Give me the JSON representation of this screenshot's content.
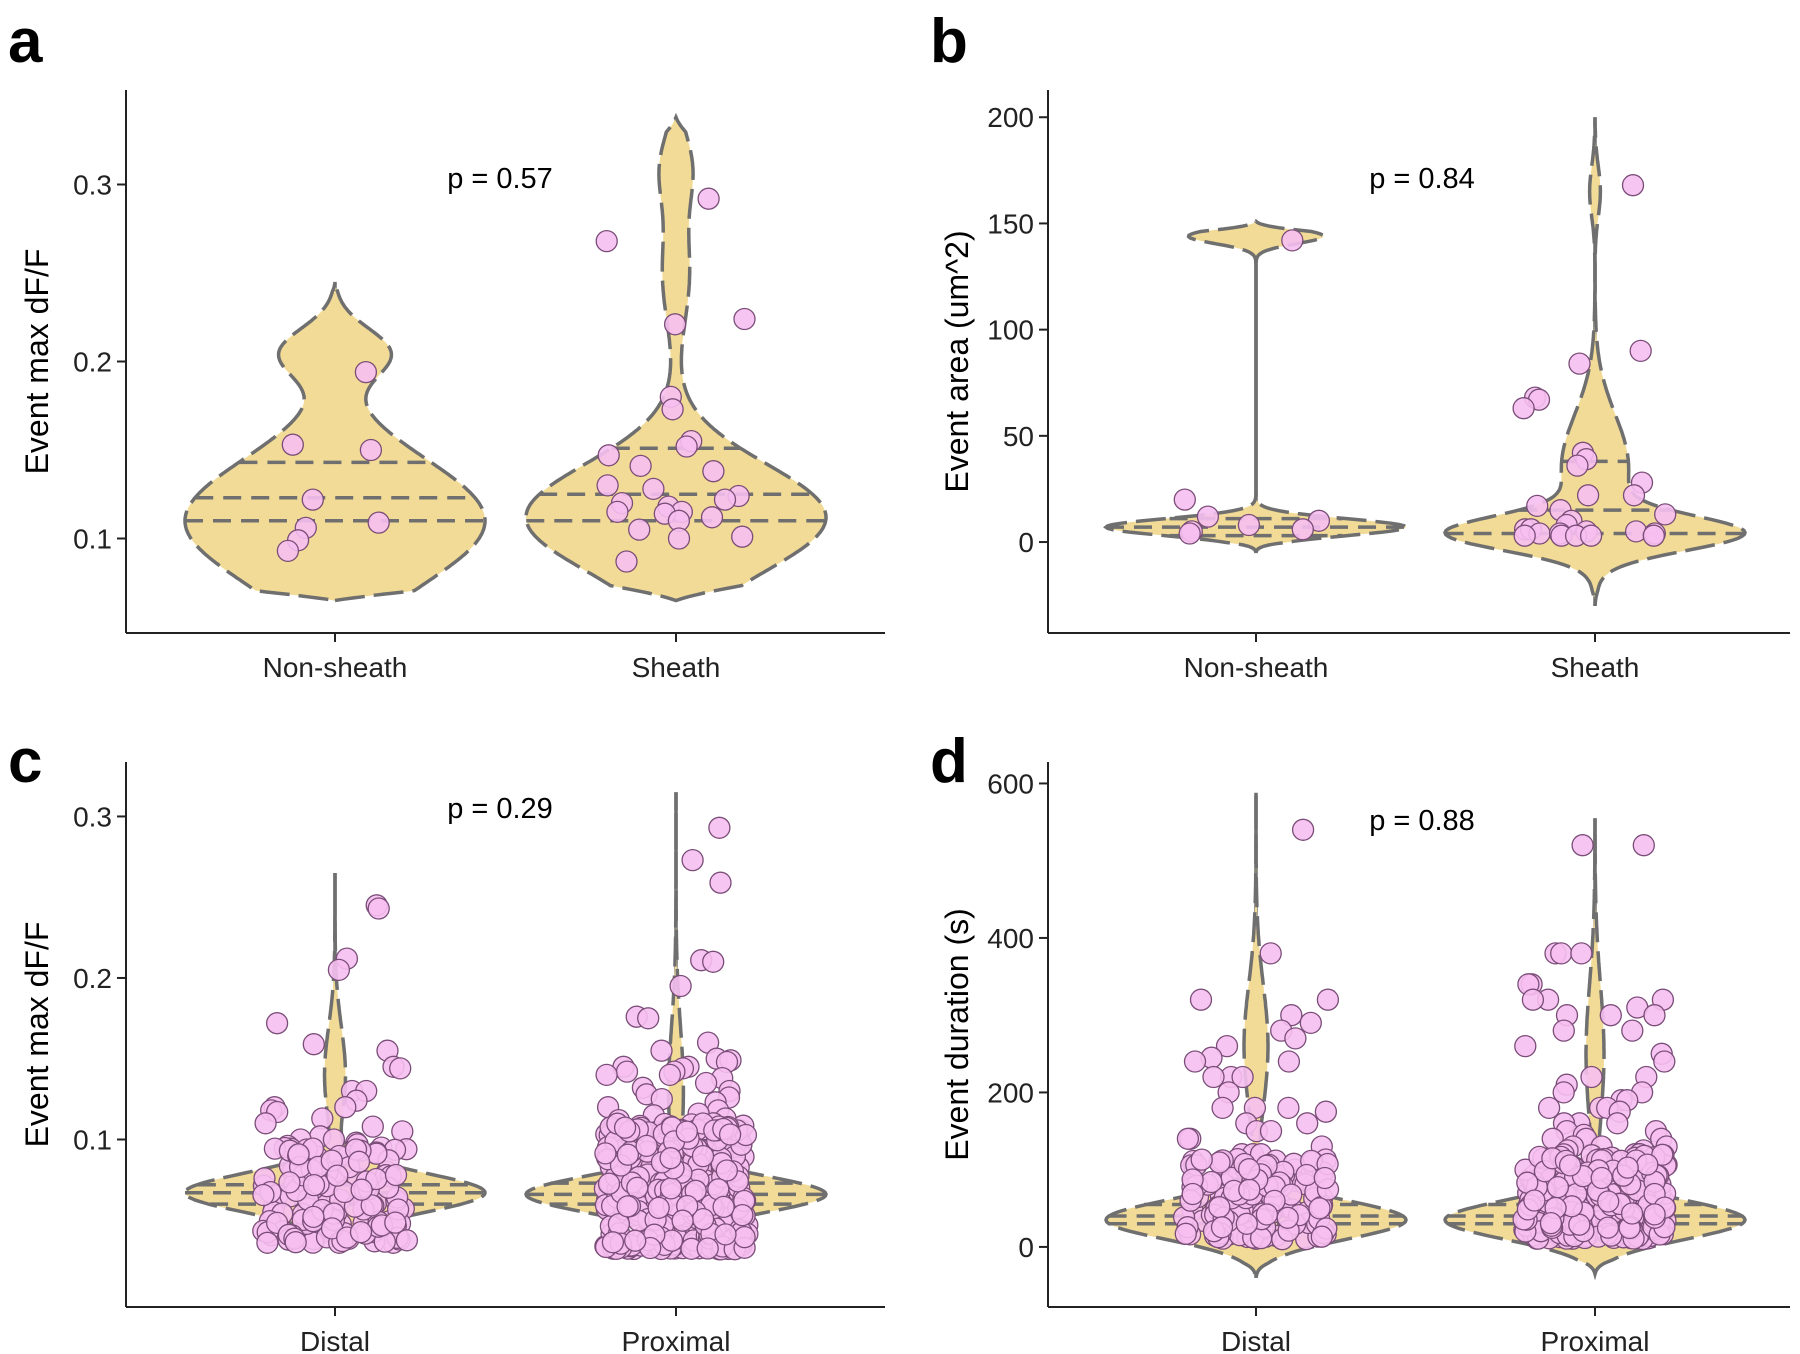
{
  "chart_data": [
    {
      "panel": "a",
      "type": "violin",
      "ylabel": "Event max dF/F",
      "ylim": [
        0.05,
        0.35
      ],
      "yticks": [
        0.1,
        0.2,
        0.3
      ],
      "ytick_labels": [
        "0.1",
        "0.2",
        "0.3"
      ],
      "categories": [
        "Non-sheath",
        "Sheath"
      ],
      "annotation": "p = 0.57",
      "violins": [
        {
          "range": [
            0.065,
            0.245
          ],
          "quantiles": [
            0.11,
            0.123,
            0.143
          ],
          "bulges": [
            [
              0.11,
              1.0,
              0.035
            ],
            [
              0.205,
              0.35,
              0.014
            ]
          ]
        },
        {
          "range": [
            0.065,
            0.338
          ],
          "quantiles": [
            0.11,
            0.125,
            0.151
          ],
          "bulges": [
            [
              0.112,
              1.0,
              0.03
            ],
            [
              0.25,
              0.09,
              0.03
            ],
            [
              0.31,
              0.1,
              0.02
            ]
          ]
        }
      ],
      "points": [
        [
          [
            0.194,
            0.153,
            0.15,
            0.122,
            0.109,
            0.106,
            0.099,
            0.093
          ]
        ],
        [
          [
            0.292,
            0.268,
            0.224,
            0.221,
            0.18,
            0.173,
            0.155,
            0.152,
            0.147,
            0.141,
            0.138,
            0.13,
            0.128,
            0.124,
            0.122,
            0.12,
            0.118,
            0.115,
            0.115,
            0.114,
            0.112,
            0.11,
            0.105,
            0.101,
            0.1,
            0.087
          ]
        ]
      ]
    },
    {
      "panel": "b",
      "type": "violin",
      "ylabel": "Event area (um^2)",
      "ylim": [
        -40,
        210
      ],
      "yticks": [
        0,
        50,
        100,
        150,
        200
      ],
      "ytick_labels": [
        "0",
        "50",
        "100",
        "150",
        "200"
      ],
      "categories": [
        "Non-sheath",
        "Sheath"
      ],
      "annotation": "p = 0.84",
      "violins": [
        {
          "range": [
            -5,
            151
          ],
          "quantiles": [
            3,
            7,
            11
          ],
          "bulges": [
            [
              7,
              1.0,
              4
            ],
            [
              144,
              0.45,
              3.5
            ]
          ]
        },
        {
          "range": [
            -30,
            200
          ],
          "quantiles": [
            4,
            15,
            38
          ],
          "bulges": [
            [
              4,
              1.0,
              8
            ],
            [
              35,
              0.25,
              25
            ],
            [
              165,
              0.04,
              12
            ]
          ]
        }
      ],
      "points": [
        [
          [
            142,
            20,
            12,
            10,
            8,
            6,
            5,
            4
          ]
        ],
        [
          [
            168,
            90,
            84,
            68,
            67,
            63,
            42,
            39,
            36,
            28,
            22,
            22,
            17,
            15,
            13,
            10,
            8,
            6,
            6,
            5,
            5,
            4,
            4,
            4,
            3,
            3,
            3,
            3,
            3
          ]
        ]
      ]
    },
    {
      "panel": "c",
      "type": "violin",
      "ylabel": "Event max dF/F",
      "ylim": [
        0.0,
        0.33
      ],
      "yticks": [
        0.1,
        0.2,
        0.3
      ],
      "ytick_labels": [
        "0.1",
        "0.2",
        "0.3"
      ],
      "categories": [
        "Distal",
        "Proximal"
      ],
      "annotation": "p = 0.29",
      "violins": [
        {
          "range": [
            0.035,
            0.265
          ],
          "quantiles": [
            0.06,
            0.067,
            0.072
          ],
          "bulges": [
            [
              0.067,
              1.0,
              0.012
            ],
            [
              0.14,
              0.07,
              0.03
            ]
          ]
        },
        {
          "range": [
            0.03,
            0.315
          ],
          "quantiles": [
            0.06,
            0.066,
            0.073
          ],
          "bulges": [
            [
              0.066,
              1.0,
              0.011
            ],
            [
              0.13,
              0.05,
              0.04
            ]
          ]
        }
      ],
      "points": [
        [
          [
            0.245,
            0.243,
            0.212,
            0.205,
            0.172,
            0.159,
            0.155,
            0.145,
            0.144,
            0.13,
            0.13,
            0.124,
            0.12,
            0.12,
            0.118,
            0.117,
            0.113,
            0.11,
            0.108,
            0.105,
            0.102,
            0.1,
            0.1,
            0.098,
            0.097,
            0.096,
            0.095,
            0.094
          ],
          {
            "n": 140,
            "min": 0.036,
            "max": 0.095
          }
        ],
        [
          [
            0.293,
            0.273,
            0.259,
            0.211,
            0.21,
            0.195,
            0.176,
            0.175,
            0.16,
            0.155,
            0.15,
            0.149,
            0.148,
            0.145,
            0.145,
            0.144,
            0.142,
            0.142,
            0.14,
            0.14,
            0.138,
            0.135,
            0.132,
            0.13,
            0.128,
            0.126,
            0.125,
            0.123,
            0.12,
            0.118,
            0.116,
            0.115,
            0.113,
            0.112,
            0.11
          ],
          {
            "n": 400,
            "min": 0.032,
            "max": 0.11
          }
        ]
      ]
    },
    {
      "panel": "d",
      "type": "violin",
      "ylabel": "Event duration (s)",
      "ylim": [
        -70,
        620
      ],
      "yticks": [
        0,
        200,
        400,
        600
      ],
      "ytick_labels": [
        "0",
        "200",
        "400",
        "600"
      ],
      "categories": [
        "Distal",
        "Proximal"
      ],
      "annotation": "p = 0.88",
      "violins": [
        {
          "range": [
            -40,
            588
          ],
          "quantiles": [
            30,
            40,
            55
          ],
          "bulges": [
            [
              35,
              1.0,
              25
            ],
            [
              260,
              0.08,
              80
            ]
          ]
        },
        {
          "range": [
            -35,
            555
          ],
          "quantiles": [
            30,
            40,
            55
          ],
          "bulges": [
            [
              35,
              1.0,
              25
            ],
            [
              250,
              0.06,
              90
            ]
          ]
        }
      ],
      "points": [
        [
          [
            540,
            380,
            320,
            320,
            300,
            290,
            280,
            270,
            260,
            245,
            240,
            240,
            220,
            220,
            220,
            200,
            180,
            180,
            180,
            175,
            160,
            160,
            150,
            150,
            140,
            140,
            130,
            120,
            120,
            120
          ],
          {
            "n": 150,
            "min": 10,
            "max": 115
          }
        ],
        [
          [
            520,
            520,
            380,
            380,
            380,
            340,
            340,
            320,
            320,
            320,
            310,
            300,
            300,
            300,
            280,
            280,
            260,
            250,
            240,
            220,
            220,
            210,
            200,
            200,
            190,
            190,
            180,
            180,
            180,
            175,
            160,
            160,
            160,
            150,
            150,
            145,
            140,
            140,
            140,
            130,
            130,
            130,
            125,
            125,
            120,
            120,
            120
          ],
          {
            "n": 300,
            "min": 10,
            "max": 120
          }
        ]
      ]
    }
  ]
}
